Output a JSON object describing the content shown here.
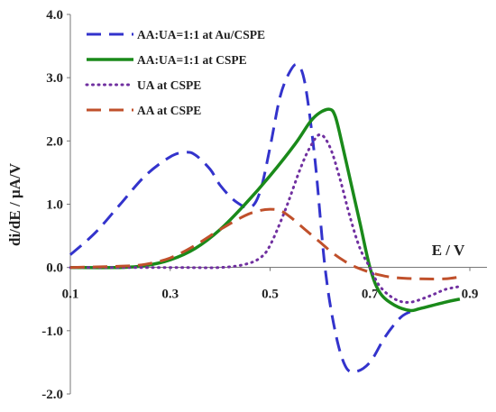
{
  "chart_data": {
    "type": "line",
    "title": "",
    "xlabel": "E / V",
    "ylabel": "di/dE / µA/V",
    "xlim": [
      0.1,
      0.9
    ],
    "ylim": [
      -2.0,
      4.0
    ],
    "x_ticks": [
      0.1,
      0.3,
      0.5,
      0.7,
      0.9
    ],
    "x_tick_labels": [
      "0.1",
      "0.3",
      "0.5",
      "0.7",
      "0.9"
    ],
    "y_ticks": [
      -2.0,
      -1.0,
      0.0,
      1.0,
      2.0,
      3.0,
      4.0
    ],
    "y_tick_labels": [
      "-2.0",
      "-1.0",
      "0.0",
      "1.0",
      "2.0",
      "3.0",
      "4.0"
    ],
    "grid": false,
    "legend_position": "top-left",
    "series": [
      {
        "name": "AA:UA=1:1 at Au/CSPE",
        "color": "#3333cc",
        "style": "dashed",
        "x": [
          0.1,
          0.15,
          0.2,
          0.25,
          0.3,
          0.33,
          0.35,
          0.38,
          0.4,
          0.43,
          0.46,
          0.48,
          0.5,
          0.52,
          0.54,
          0.555,
          0.57,
          0.59,
          0.61,
          0.63,
          0.65,
          0.67,
          0.7,
          0.73,
          0.76,
          0.78
        ],
        "y": [
          0.2,
          0.55,
          1.0,
          1.45,
          1.75,
          1.82,
          1.78,
          1.55,
          1.3,
          1.05,
          0.95,
          1.2,
          1.9,
          2.7,
          3.1,
          3.2,
          2.9,
          1.7,
          0.0,
          -1.0,
          -1.55,
          -1.65,
          -1.5,
          -1.1,
          -0.8,
          -0.7
        ]
      },
      {
        "name": "AA:UA=1:1 at CSPE",
        "color": "#1a8a1a",
        "style": "solid",
        "x": [
          0.1,
          0.2,
          0.25,
          0.3,
          0.35,
          0.4,
          0.45,
          0.5,
          0.55,
          0.58,
          0.6,
          0.62,
          0.63,
          0.64,
          0.66,
          0.68,
          0.7,
          0.72,
          0.75,
          0.78,
          0.8,
          0.85,
          0.88
        ],
        "y": [
          0.0,
          0.0,
          0.03,
          0.12,
          0.3,
          0.6,
          1.0,
          1.45,
          1.95,
          2.3,
          2.45,
          2.5,
          2.4,
          2.1,
          1.4,
          0.7,
          0.0,
          -0.4,
          -0.6,
          -0.68,
          -0.65,
          -0.55,
          -0.5
        ]
      },
      {
        "name": "UA at CSPE",
        "color": "#7030a0",
        "style": "dotted",
        "x": [
          0.1,
          0.3,
          0.4,
          0.45,
          0.48,
          0.5,
          0.53,
          0.56,
          0.58,
          0.6,
          0.62,
          0.64,
          0.66,
          0.68,
          0.7,
          0.72,
          0.75,
          0.78,
          0.82,
          0.85,
          0.88
        ],
        "y": [
          0.0,
          0.0,
          0.0,
          0.05,
          0.15,
          0.35,
          0.9,
          1.55,
          1.9,
          2.1,
          1.9,
          1.4,
          0.8,
          0.3,
          0.0,
          -0.3,
          -0.5,
          -0.55,
          -0.45,
          -0.35,
          -0.3
        ]
      },
      {
        "name": "AA at CSPE",
        "color": "#c0502b",
        "style": "dashed",
        "x": [
          0.1,
          0.2,
          0.25,
          0.3,
          0.35,
          0.4,
          0.45,
          0.48,
          0.5,
          0.52,
          0.54,
          0.57,
          0.6,
          0.63,
          0.66,
          0.69,
          0.72,
          0.75,
          0.8,
          0.85,
          0.88
        ],
        "y": [
          0.0,
          0.02,
          0.05,
          0.15,
          0.35,
          0.6,
          0.82,
          0.9,
          0.92,
          0.9,
          0.8,
          0.6,
          0.4,
          0.2,
          0.05,
          -0.05,
          -0.12,
          -0.16,
          -0.18,
          -0.18,
          -0.15
        ]
      }
    ]
  }
}
